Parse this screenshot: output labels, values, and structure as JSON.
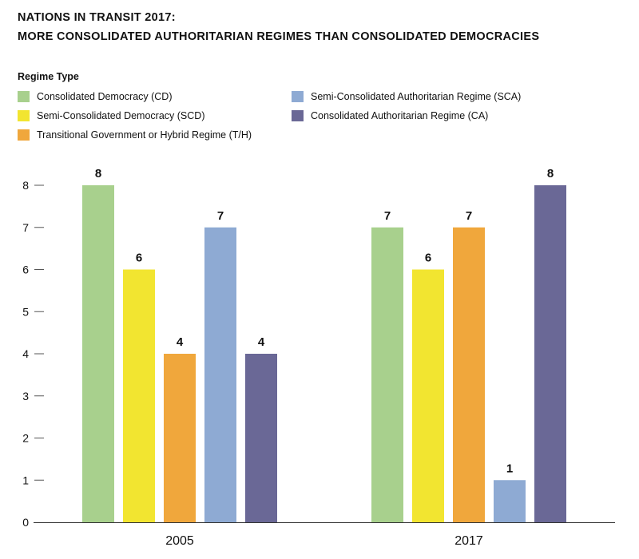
{
  "title_line1": "NATIONS IN TRANSIT 2017:",
  "title_line2": "MORE CONSOLIDATED AUTHORITARIAN REGIMES THAN CONSOLIDATED DEMOCRACIES",
  "legend": {
    "title": "Regime Type",
    "items": [
      {
        "label": "Consolidated Democracy (CD)",
        "color": "#a8d08d"
      },
      {
        "label": "Semi-Consolidated Democracy (SCD)",
        "color": "#f2e530"
      },
      {
        "label": "Transitional Government or Hybrid Regime (T/H)",
        "color": "#f0a73c"
      },
      {
        "label": "Semi-Consolidated Authoritarian Regime (SCA)",
        "color": "#8eaad3"
      },
      {
        "label": "Consolidated Authoritarian Regime (CA)",
        "color": "#6a6896"
      }
    ]
  },
  "chart_data": {
    "type": "bar",
    "title": "NATIONS IN TRANSIT 2017: MORE CONSOLIDATED AUTHORITARIAN REGIMES THAN CONSOLIDATED DEMOCRACIES",
    "categories": [
      "2005",
      "2017"
    ],
    "series": [
      {
        "name": "Consolidated Democracy (CD)",
        "values": [
          8,
          7
        ]
      },
      {
        "name": "Semi-Consolidated Democracy (SCD)",
        "values": [
          6,
          6
        ]
      },
      {
        "name": "Transitional Government or Hybrid Regime (T/H)",
        "values": [
          4,
          7
        ]
      },
      {
        "name": "Semi-Consolidated Authoritarian Regime (SCA)",
        "values": [
          7,
          1
        ]
      },
      {
        "name": "Consolidated Authoritarian Regime (CA)",
        "values": [
          4,
          8
        ]
      }
    ],
    "yticks": [
      0,
      1,
      2,
      3,
      4,
      5,
      6,
      7,
      8
    ],
    "ylim": [
      0,
      8
    ],
    "xlabel": "",
    "ylabel": "",
    "data_labels": true,
    "grid": false,
    "legend_position": "top-left"
  }
}
